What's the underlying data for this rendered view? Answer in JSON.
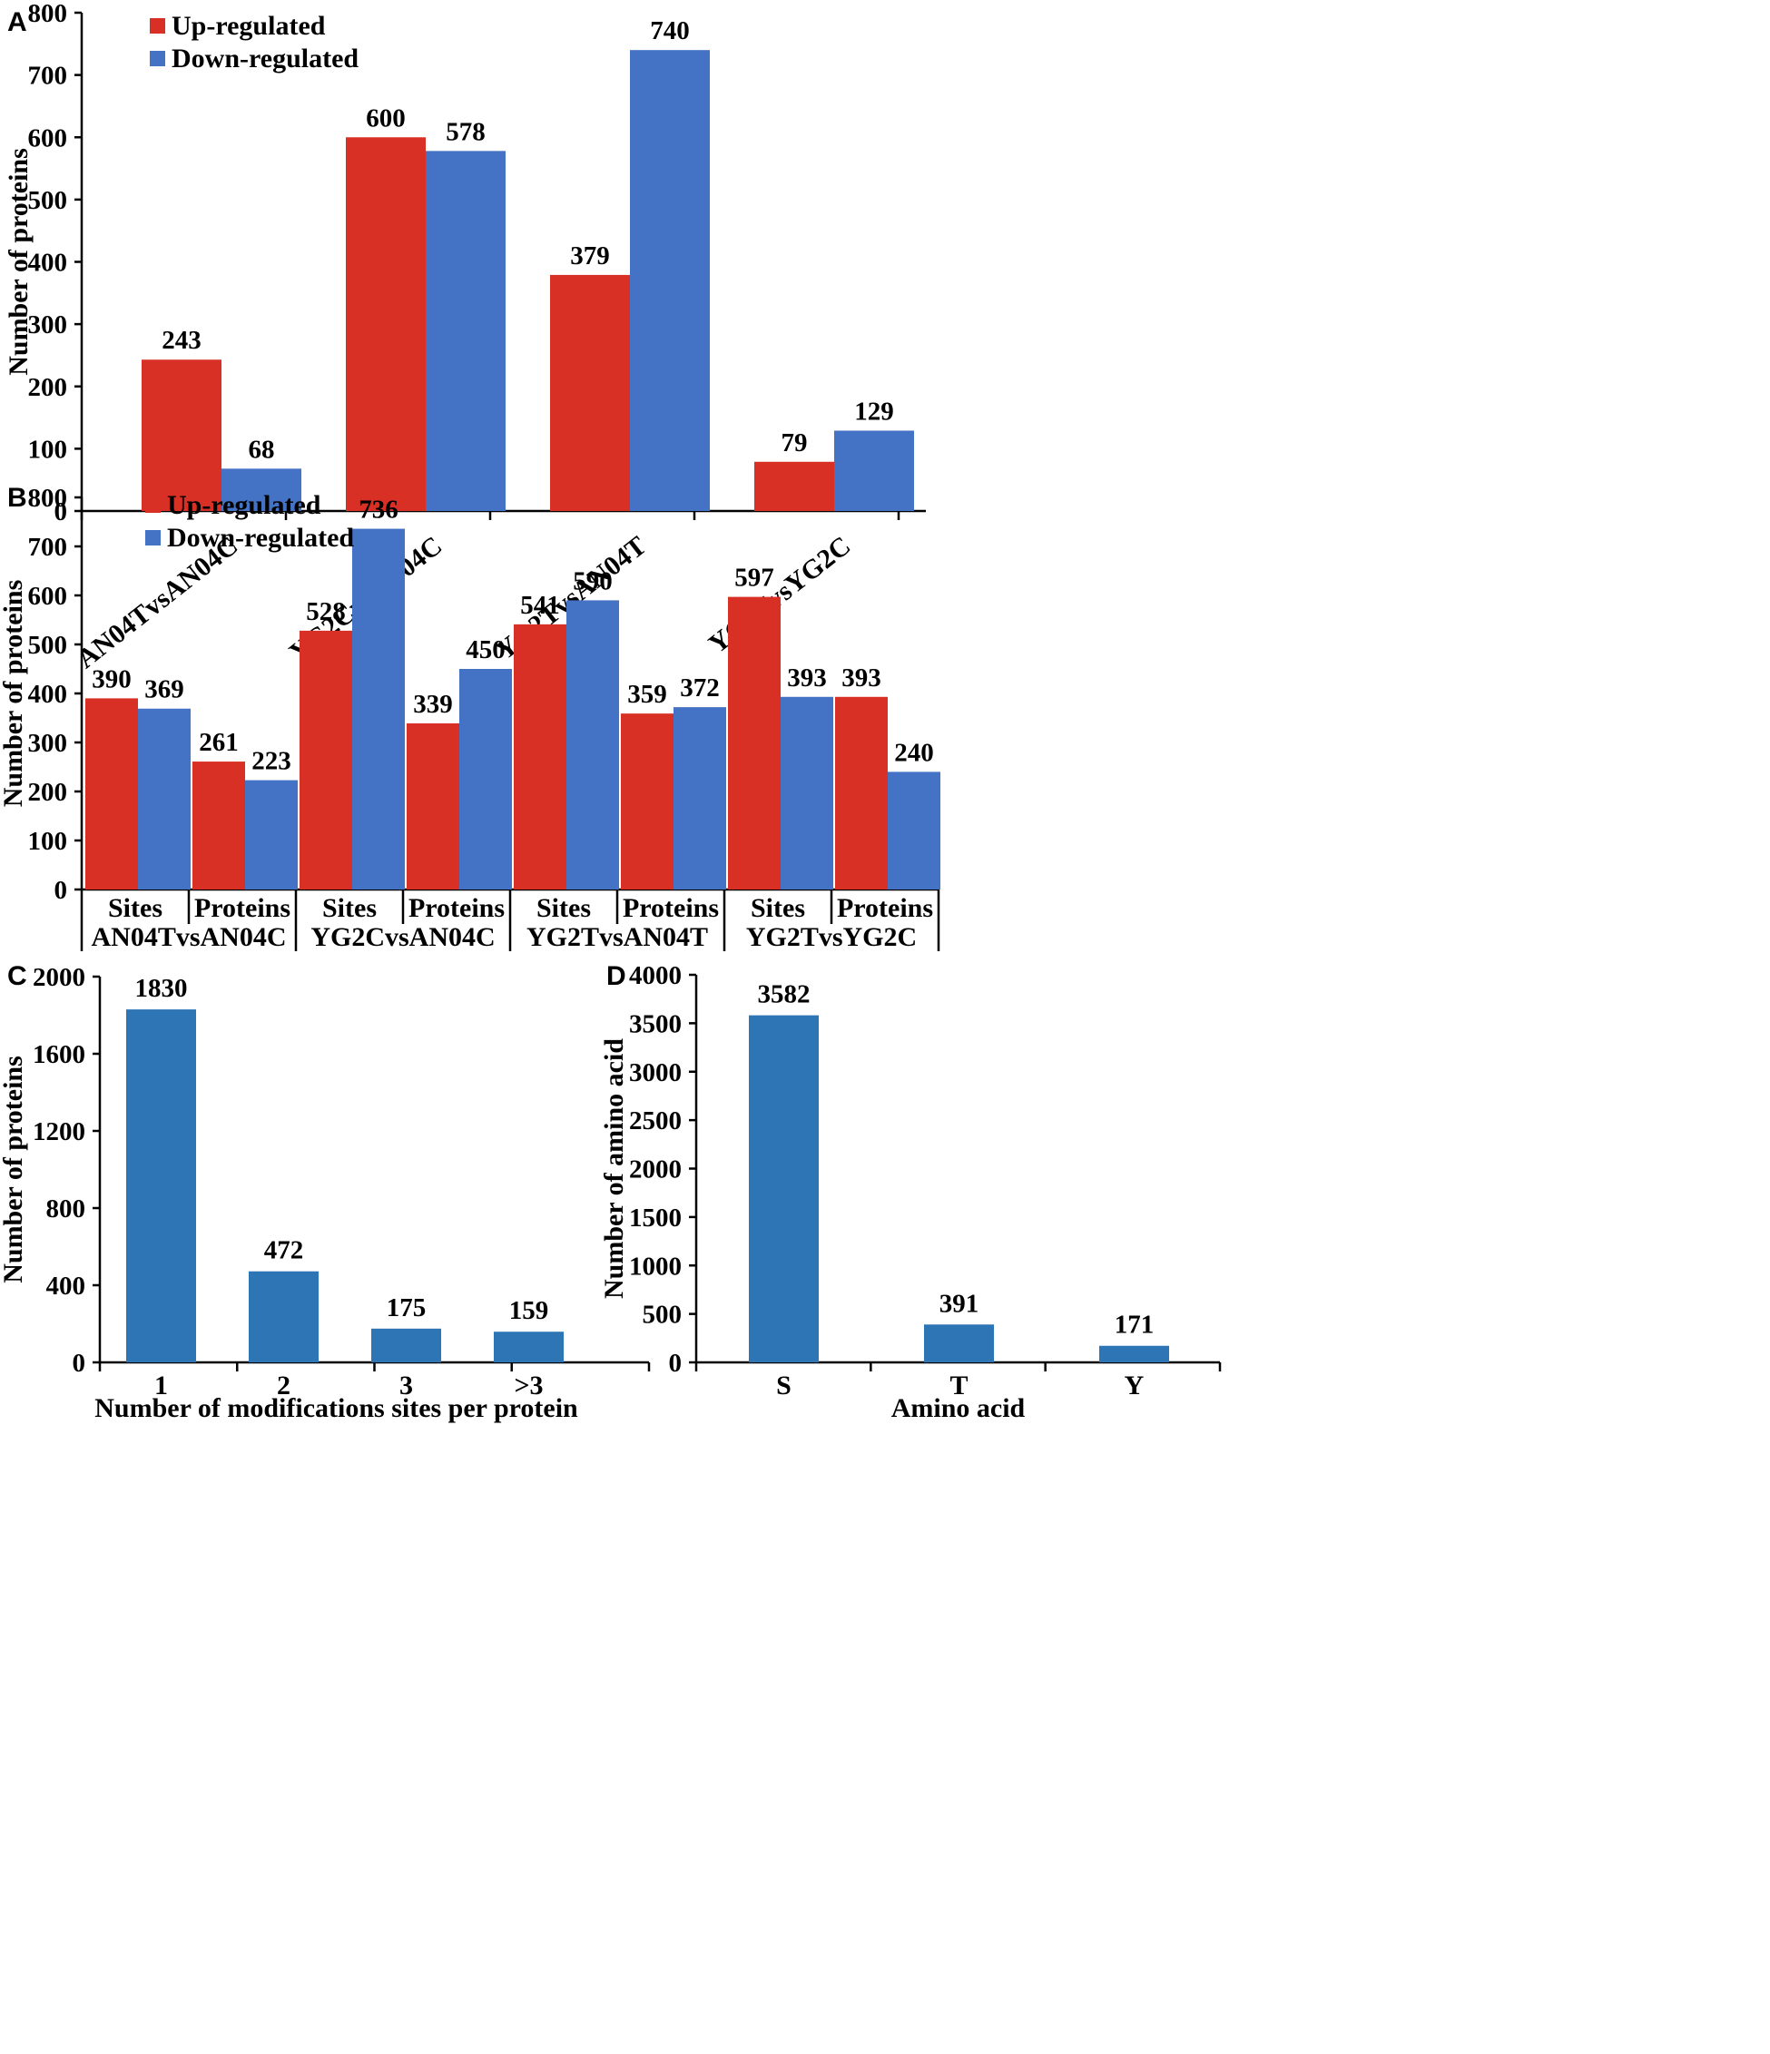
{
  "colors": {
    "up": "#d93025",
    "down": "#4472c4",
    "single": "#2e75b6"
  },
  "chart_data": [
    {
      "panel": "A",
      "type": "bar",
      "ylabel": "Number of proteins",
      "ylim": [
        0,
        800
      ],
      "yticks": [
        0,
        100,
        200,
        300,
        400,
        500,
        600,
        700,
        800
      ],
      "categories": [
        "AN04TvsAN04C",
        "YG2CvsAN04C",
        "YG2TvsAN04T",
        "YG2TvsYG2C"
      ],
      "series": [
        {
          "name": "Up-regulated",
          "color_key": "up",
          "values": [
            243,
            600,
            379,
            79
          ]
        },
        {
          "name": "Down-regulated",
          "color_key": "down",
          "values": [
            68,
            578,
            740,
            129
          ]
        }
      ],
      "legend": "top-left"
    },
    {
      "panel": "B",
      "type": "bar",
      "ylabel": "Number of proteins",
      "ylim": [
        0,
        800
      ],
      "yticks": [
        0,
        100,
        200,
        300,
        400,
        500,
        600,
        700,
        800
      ],
      "categories": [
        "Sites",
        "Proteins",
        "Sites",
        "Proteins",
        "Sites",
        "Proteins",
        "Sites",
        "Proteins"
      ],
      "groups": [
        "AN04TvsAN04C",
        "YG2CvsAN04C",
        "YG2TvsAN04T",
        "YG2TvsYG2C"
      ],
      "series": [
        {
          "name": "Up-regulated",
          "color_key": "up",
          "values": [
            390,
            261,
            528,
            339,
            541,
            359,
            597,
            393
          ]
        },
        {
          "name": "Down-regulated",
          "color_key": "down",
          "values": [
            369,
            223,
            736,
            450,
            590,
            372,
            393,
            240
          ]
        }
      ],
      "legend": "top-left"
    },
    {
      "panel": "C",
      "type": "bar",
      "xlabel": "Number of modifications sites  per protein",
      "ylabel": "Number of proteins",
      "ylim": [
        0,
        2000
      ],
      "yticks": [
        0,
        400,
        800,
        1200,
        1600,
        2000
      ],
      "categories": [
        "1",
        "2",
        "3",
        ">3"
      ],
      "values": [
        1830,
        472,
        175,
        159
      ]
    },
    {
      "panel": "D",
      "type": "bar",
      "xlabel": "Amino acid",
      "ylabel": "Number of amino acid",
      "ylim": [
        0,
        4000
      ],
      "yticks": [
        0,
        500,
        1000,
        1500,
        2000,
        2500,
        3000,
        3500,
        4000
      ],
      "categories": [
        "S",
        "T",
        "Y"
      ],
      "values": [
        3582,
        391,
        171
      ]
    }
  ]
}
